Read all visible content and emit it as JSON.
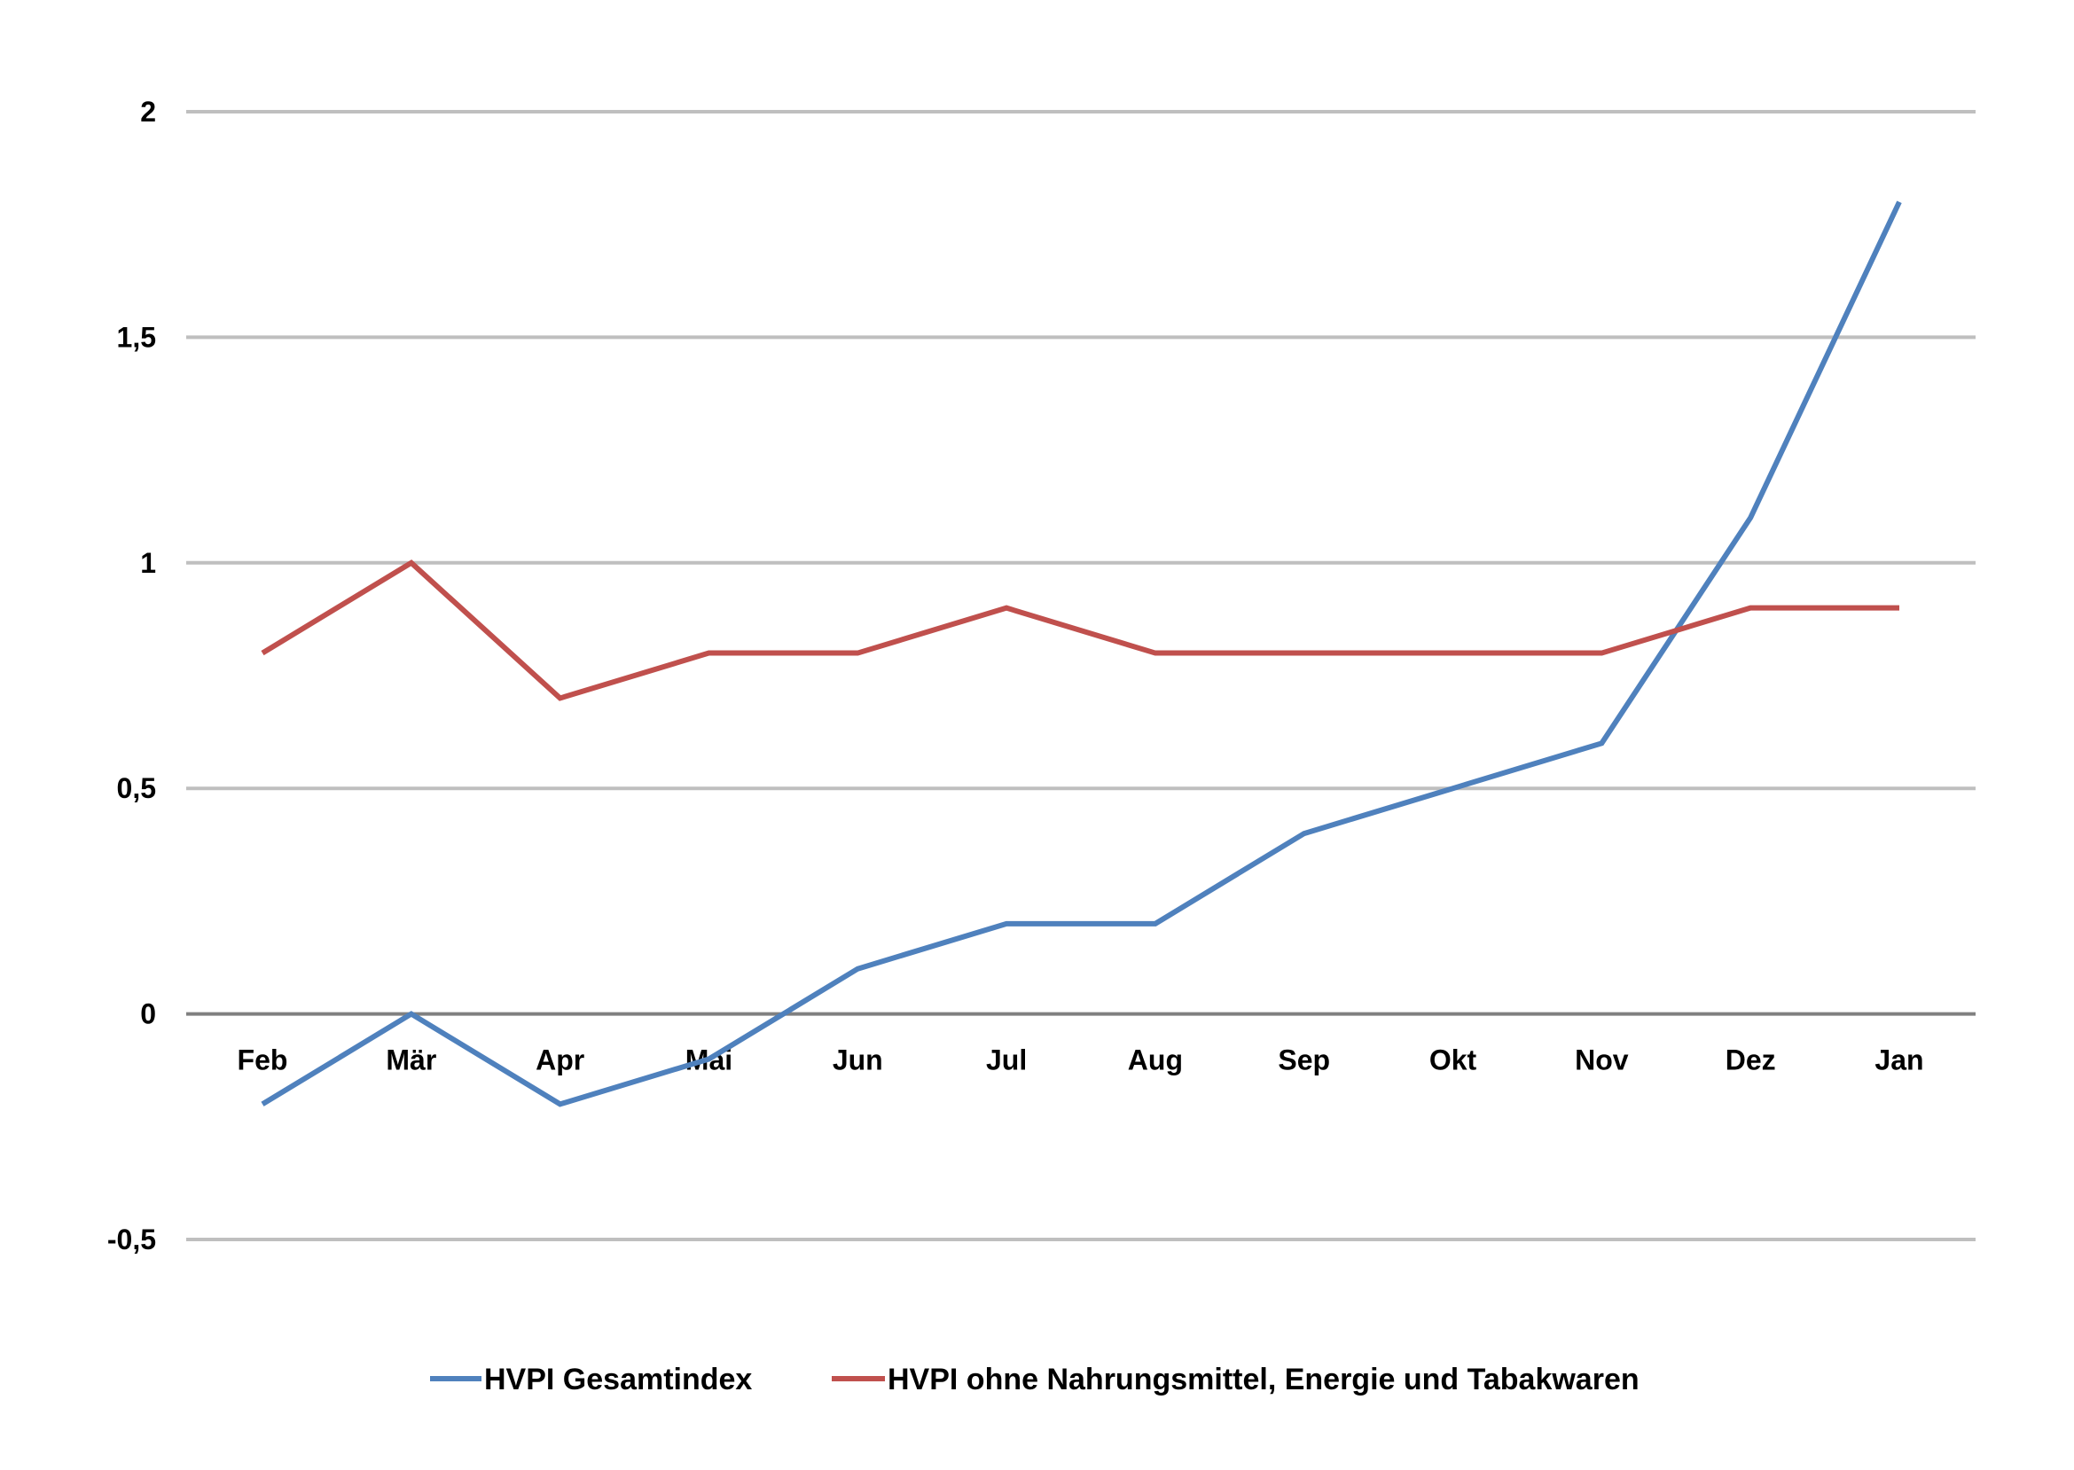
{
  "chart_data": {
    "type": "line",
    "categories": [
      "Feb",
      "Mär",
      "Apr",
      "Mai",
      "Jun",
      "Jul",
      "Aug",
      "Sep",
      "Okt",
      "Nov",
      "Dez",
      "Jan"
    ],
    "series": [
      {
        "name": "HVPI Gesamtindex",
        "color": "#4f81bd",
        "values": [
          -0.2,
          0.0,
          -0.2,
          -0.1,
          0.1,
          0.2,
          0.2,
          0.4,
          0.5,
          0.6,
          1.1,
          1.8
        ]
      },
      {
        "name": "HVPI ohne Nahrungsmittel, Energie und Tabakwaren",
        "color": "#c0504d",
        "values": [
          0.8,
          1.0,
          0.7,
          0.8,
          0.8,
          0.9,
          0.8,
          0.8,
          0.8,
          0.8,
          0.9,
          0.9
        ]
      }
    ],
    "ylim": [
      -0.5,
      2
    ],
    "yticks": [
      -0.5,
      0,
      0.5,
      1,
      1.5,
      2
    ],
    "ytick_labels": [
      "-0,5",
      "0",
      "0,5",
      "1",
      "1,5",
      "2"
    ],
    "grid": true,
    "legend_position": "bottom",
    "gridline_color": "#bfbfbf",
    "zero_line_color": "#808080"
  }
}
